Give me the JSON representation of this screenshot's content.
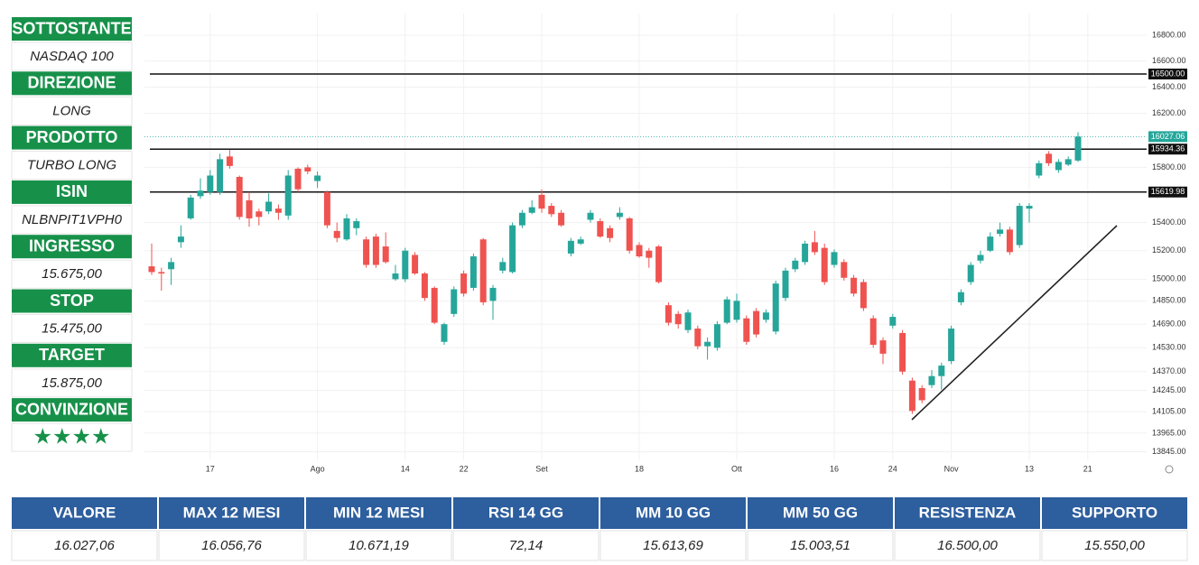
{
  "panel": [
    {
      "label": "SOTTOSTANTE",
      "value": "NASDAQ 100"
    },
    {
      "label": "DIREZIONE",
      "value": "LONG"
    },
    {
      "label": "PRODOTTO",
      "value": "TURBO LONG"
    },
    {
      "label": "ISIN",
      "value": "NLBNPIT1VPH0"
    },
    {
      "label": "INGRESSO",
      "value": "15.675,00"
    },
    {
      "label": "STOP",
      "value": "15.475,00"
    },
    {
      "label": "TARGET",
      "value": "15.875,00"
    },
    {
      "label": "CONVINZIONE",
      "value": "★★★★"
    }
  ],
  "table": [
    {
      "header": "VALORE",
      "value": "16.027,06"
    },
    {
      "header": "MAX 12 MESI",
      "value": "16.056,76"
    },
    {
      "header": "MIN 12 MESI",
      "value": "10.671,19"
    },
    {
      "header": "RSI 14 GG",
      "value": "72,14"
    },
    {
      "header": "MM 10 GG",
      "value": "15.613,69"
    },
    {
      "header": "MM 50 GG",
      "value": "15.003,51"
    },
    {
      "header": "RESISTENZA",
      "value": "16.500,00"
    },
    {
      "header": "SUPPORTO",
      "value": "15.550,00"
    }
  ],
  "chart_data": {
    "type": "candlestick",
    "log_scale": true,
    "grid": true,
    "up_color": "#26a69a",
    "down_color": "#ef5350",
    "categories": [
      null,
      null,
      null,
      null,
      null,
      null,
      "17",
      null,
      null,
      null,
      null,
      null,
      null,
      null,
      null,
      null,
      null,
      "Ago",
      null,
      null,
      null,
      null,
      null,
      null,
      null,
      null,
      "14",
      null,
      null,
      null,
      null,
      null,
      "22",
      null,
      null,
      null,
      null,
      null,
      null,
      null,
      "Set",
      null,
      null,
      null,
      null,
      null,
      null,
      null,
      null,
      null,
      "18",
      null,
      null,
      null,
      null,
      null,
      null,
      null,
      null,
      null,
      "Ott",
      null,
      null,
      null,
      null,
      null,
      null,
      null,
      null,
      null,
      "16",
      null,
      null,
      null,
      null,
      null,
      "24",
      null,
      null,
      null,
      null,
      null,
      "Nov",
      null,
      null,
      null,
      null,
      null,
      null,
      null,
      "13",
      null,
      null,
      null,
      null,
      null,
      "21"
    ],
    "open": [
      15090,
      15050,
      15070,
      15260,
      15430,
      15590,
      15620,
      15620,
      15880,
      15730,
      15560,
      15480,
      15480,
      15500,
      15450,
      15790,
      15800,
      15700,
      15620,
      15340,
      15280,
      15360,
      15280,
      15300,
      15230,
      15000,
      15000,
      15170,
      15040,
      14940,
      14570,
      14760,
      15040,
      14940,
      15280,
      14850,
      15060,
      15050,
      15380,
      15470,
      15600,
      15520,
      15470,
      15180,
      15250,
      15420,
      15410,
      15360,
      15440,
      15430,
      15240,
      15200,
      15230,
      14820,
      14760,
      14650,
      14660,
      14540,
      14530,
      14700,
      14720,
      14730,
      14780,
      14720,
      14640,
      14870,
      15070,
      15120,
      15260,
      15220,
      15100,
      15120,
      15010,
      14980,
      14730,
      14580,
      14680,
      14630,
      14310,
      14260,
      14280,
      14340,
      14440,
      14840,
      14980,
      15130,
      15200,
      15320,
      15350,
      15240,
      15500,
      15740,
      15900,
      15780,
      15820,
      15850,
      null
    ],
    "high": [
      15250,
      15080,
      15150,
      15380,
      15600,
      15720,
      15780,
      15900,
      15930,
      15740,
      15620,
      15500,
      15610,
      15530,
      15780,
      15800,
      15820,
      15770,
      15630,
      15400,
      15460,
      15430,
      15300,
      15320,
      15330,
      15100,
      15220,
      15190,
      15050,
      14950,
      14700,
      14950,
      15060,
      15180,
      15290,
      14960,
      15150,
      15400,
      15490,
      15560,
      15640,
      15540,
      15490,
      15290,
      15300,
      15490,
      15430,
      15380,
      15510,
      15440,
      15260,
      15220,
      15240,
      14840,
      14780,
      14790,
      14680,
      14600,
      14710,
      14880,
      14900,
      14750,
      14800,
      14790,
      14990,
      15080,
      15150,
      15270,
      15340,
      15250,
      15210,
      15140,
      15030,
      15000,
      14750,
      14600,
      14760,
      14650,
      14330,
      14280,
      14380,
      14430,
      14680,
      14930,
      15120,
      15200,
      15330,
      15400,
      15370,
      15540,
      15540,
      15850,
      15920,
      15860,
      15880,
      16060,
      null
    ],
    "low": [
      15030,
      14920,
      14960,
      15220,
      15420,
      15570,
      15600,
      15600,
      15790,
      15420,
      15370,
      15380,
      15460,
      15420,
      15420,
      15620,
      15750,
      15650,
      15360,
      15260,
      15270,
      15310,
      15080,
      15080,
      15110,
      14990,
      14980,
      15030,
      14850,
      14690,
      14550,
      14740,
      14880,
      14920,
      14820,
      14720,
      15040,
      15040,
      15360,
      15460,
      15470,
      15440,
      15370,
      15160,
      15240,
      15400,
      15290,
      15260,
      15420,
      15180,
      15150,
      15080,
      14970,
      14680,
      14660,
      14630,
      14520,
      14450,
      14510,
      14690,
      14700,
      14550,
      14600,
      14700,
      14620,
      14850,
      15050,
      15100,
      15170,
      14960,
      15080,
      14990,
      14880,
      14780,
      14530,
      14420,
      14660,
      14350,
      14090,
      14160,
      14260,
      14250,
      14420,
      14820,
      14960,
      15110,
      15190,
      15300,
      15170,
      15220,
      15400,
      15720,
      15810,
      15760,
      15810,
      15840,
      null
    ],
    "close": [
      15050,
      15040,
      15120,
      15300,
      15580,
      15630,
      15740,
      15860,
      15810,
      15440,
      15430,
      15440,
      15550,
      15470,
      15740,
      15640,
      15770,
      15740,
      15380,
      15290,
      15430,
      15410,
      15100,
      15100,
      15120,
      15040,
      15200,
      15040,
      14870,
      14700,
      14690,
      14930,
      14900,
      15160,
      14840,
      14940,
      15120,
      15380,
      15470,
      15510,
      15500,
      15460,
      15380,
      15270,
      15280,
      15470,
      15300,
      15290,
      15470,
      15200,
      15160,
      15150,
      14980,
      14700,
      14690,
      14770,
      14540,
      14570,
      14690,
      14860,
      14850,
      14570,
      14620,
      14770,
      14970,
      15060,
      15130,
      15250,
      15190,
      14980,
      15190,
      15010,
      14900,
      14800,
      14550,
      14490,
      14740,
      14370,
      14110,
      14180,
      14340,
      14410,
      14660,
      14910,
      15100,
      15170,
      15300,
      15350,
      15190,
      15520,
      15520,
      15830,
      15830,
      15840,
      15860,
      16027.06,
      null
    ],
    "ylim": [
      13790,
      16970
    ],
    "yticks": [
      {
        "value": 16800,
        "label": "16800.00"
      },
      {
        "value": 16600,
        "label": "16600.00"
      },
      {
        "value": 16400,
        "label": "16400.00"
      },
      {
        "value": 16200,
        "label": "16200.00"
      },
      {
        "value": 15800,
        "label": "15800.00"
      },
      {
        "value": 15400,
        "label": "15400.00"
      },
      {
        "value": 15200,
        "label": "15200.00"
      },
      {
        "value": 15000,
        "label": "15000.00"
      },
      {
        "value": 14850,
        "label": "14850.00"
      },
      {
        "value": 14690,
        "label": "14690.00"
      },
      {
        "value": 14530,
        "label": "14530.00"
      },
      {
        "value": 14370,
        "label": "14370.00"
      },
      {
        "value": 14245,
        "label": "14245.00"
      },
      {
        "value": 14105,
        "label": "14105.00"
      },
      {
        "value": 13965,
        "label": "13965.00"
      },
      {
        "value": 13845,
        "label": "13845.00"
      }
    ],
    "levels": [
      {
        "value": 16500,
        "label": "16500.00"
      },
      {
        "value": 15934.36,
        "label": "15934.36"
      },
      {
        "value": 15619.98,
        "label": "15619.98"
      }
    ],
    "last_price": {
      "value": 16027.06,
      "label": "16027.06",
      "color": "#26a69a"
    }
  }
}
